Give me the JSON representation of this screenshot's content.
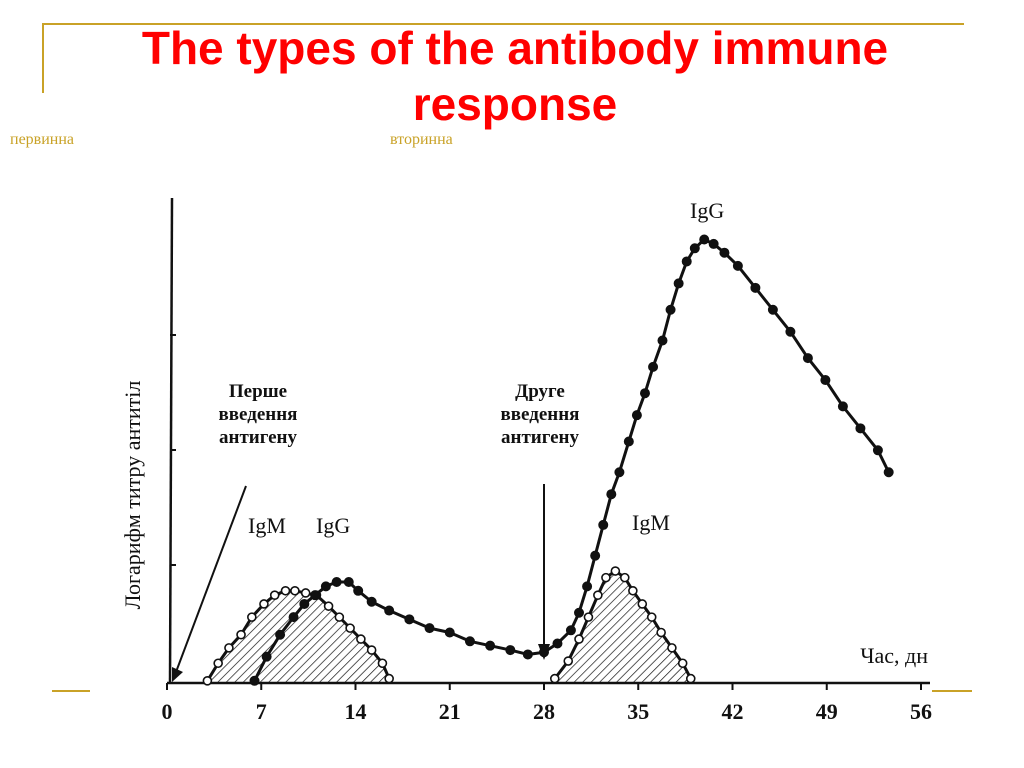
{
  "slide": {
    "title": "The types of the antibody immune response",
    "tag_primary": "первинна",
    "tag_secondary": "вторинна"
  },
  "colors": {
    "title": "#ff0000",
    "accent_lines": "#c9a227",
    "ink": "#111111"
  },
  "chart_data": {
    "type": "line",
    "xlabel": "Час, дн",
    "ylabel": "Логарифм титру антитіл",
    "xlim": [
      0,
      56
    ],
    "x_ticks": [
      0,
      7,
      14,
      21,
      28,
      35,
      42,
      49,
      56
    ],
    "y_scale": "log",
    "grid": false,
    "annotations": [
      {
        "text": [
          "Перше",
          "введення",
          "антигену"
        ],
        "x": 0
      },
      {
        "text": [
          "Друге",
          "введення",
          "антигену"
        ],
        "x": 28
      }
    ],
    "series": [
      {
        "name": "IgM",
        "marker": "open-circle",
        "fill": "hatched",
        "points": [
          [
            3,
            0.05
          ],
          [
            3.8,
            0.45
          ],
          [
            4.6,
            0.8
          ],
          [
            5.5,
            1.1
          ],
          [
            6.3,
            1.5
          ],
          [
            7.2,
            1.8
          ],
          [
            8.0,
            2.0
          ],
          [
            8.8,
            2.1
          ],
          [
            9.5,
            2.1
          ],
          [
            10.3,
            2.05
          ],
          [
            11.1,
            2.0
          ],
          [
            12.0,
            1.75
          ],
          [
            12.8,
            1.5
          ],
          [
            13.6,
            1.25
          ],
          [
            14.4,
            1.0
          ],
          [
            15.2,
            0.75
          ],
          [
            16.0,
            0.45
          ],
          [
            16.5,
            0.1
          ]
        ]
      },
      {
        "name": "IgG",
        "marker": "filled-circle",
        "points": [
          [
            6.5,
            0.05
          ],
          [
            7.4,
            0.6
          ],
          [
            8.4,
            1.1
          ],
          [
            9.4,
            1.5
          ],
          [
            10.2,
            1.8
          ],
          [
            11.0,
            2.0
          ],
          [
            11.8,
            2.2
          ],
          [
            12.6,
            2.3
          ],
          [
            13.5,
            2.3
          ],
          [
            14.2,
            2.1
          ],
          [
            15.2,
            1.85
          ],
          [
            16.5,
            1.65
          ],
          [
            18.0,
            1.45
          ],
          [
            19.5,
            1.25
          ],
          [
            21.0,
            1.15
          ],
          [
            22.5,
            0.95
          ],
          [
            24.0,
            0.85
          ],
          [
            25.5,
            0.75
          ],
          [
            26.8,
            0.65
          ],
          [
            28.0,
            0.7
          ],
          [
            29.0,
            0.9
          ],
          [
            30.0,
            1.2
          ],
          [
            30.6,
            1.6
          ],
          [
            31.2,
            2.2
          ],
          [
            31.8,
            2.9
          ],
          [
            32.4,
            3.6
          ],
          [
            33.0,
            4.3
          ],
          [
            33.6,
            4.8
          ],
          [
            34.3,
            5.5
          ],
          [
            34.9,
            6.1
          ],
          [
            35.5,
            6.6
          ],
          [
            36.1,
            7.2
          ],
          [
            36.8,
            7.8
          ],
          [
            37.4,
            8.5
          ],
          [
            38.0,
            9.1
          ],
          [
            38.6,
            9.6
          ],
          [
            39.2,
            9.9
          ],
          [
            39.9,
            10.1
          ],
          [
            40.6,
            10.0
          ],
          [
            41.4,
            9.8
          ],
          [
            42.4,
            9.5
          ],
          [
            43.7,
            9.0
          ],
          [
            45.0,
            8.5
          ],
          [
            46.3,
            8.0
          ],
          [
            47.6,
            7.4
          ],
          [
            48.9,
            6.9
          ],
          [
            50.2,
            6.3
          ],
          [
            51.5,
            5.8
          ],
          [
            52.8,
            5.3
          ],
          [
            53.6,
            4.8
          ]
        ]
      },
      {
        "name": "IgM",
        "marker": "open-circle",
        "fill": "hatched",
        "points": [
          [
            28.8,
            0.1
          ],
          [
            29.8,
            0.5
          ],
          [
            30.6,
            1.0
          ],
          [
            31.3,
            1.5
          ],
          [
            32.0,
            2.0
          ],
          [
            32.6,
            2.4
          ],
          [
            33.3,
            2.55
          ],
          [
            34.0,
            2.4
          ],
          [
            34.6,
            2.1
          ],
          [
            35.3,
            1.8
          ],
          [
            36.0,
            1.5
          ],
          [
            36.7,
            1.15
          ],
          [
            37.5,
            0.8
          ],
          [
            38.3,
            0.45
          ],
          [
            38.9,
            0.1
          ]
        ]
      }
    ]
  }
}
